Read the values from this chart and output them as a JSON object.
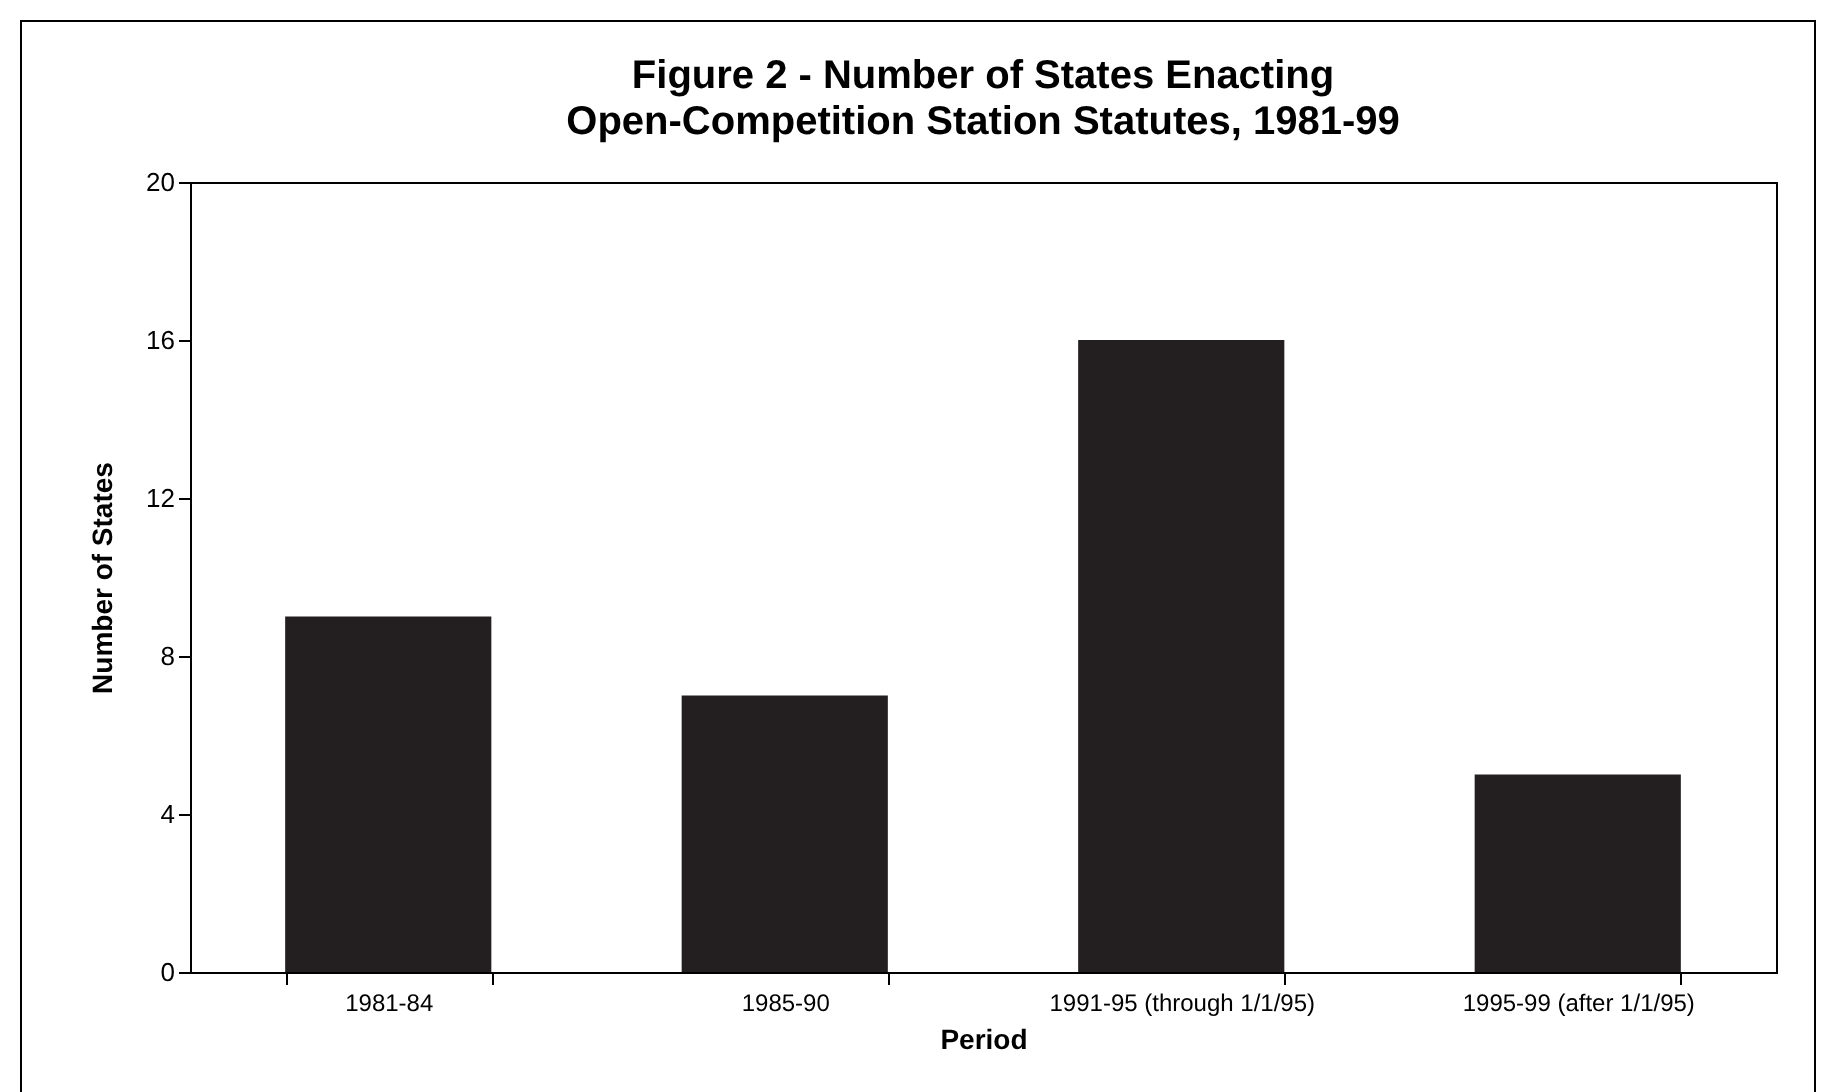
{
  "chart_data": {
    "type": "bar",
    "title": "Figure 2 - Number of States Enacting\nOpen-Competition Station Statutes, 1981-99",
    "xlabel": "Period",
    "ylabel": "Number of States",
    "categories": [
      "1981-84",
      "1985-90",
      "1991-95 (through 1/1/95)",
      "1995-99 (after 1/1/95)"
    ],
    "values": [
      9,
      7,
      16,
      5
    ],
    "color": "#231f20",
    "ylim": [
      0,
      20
    ],
    "yticks": [
      0,
      4,
      8,
      12,
      16,
      20
    ],
    "grid": false
  }
}
